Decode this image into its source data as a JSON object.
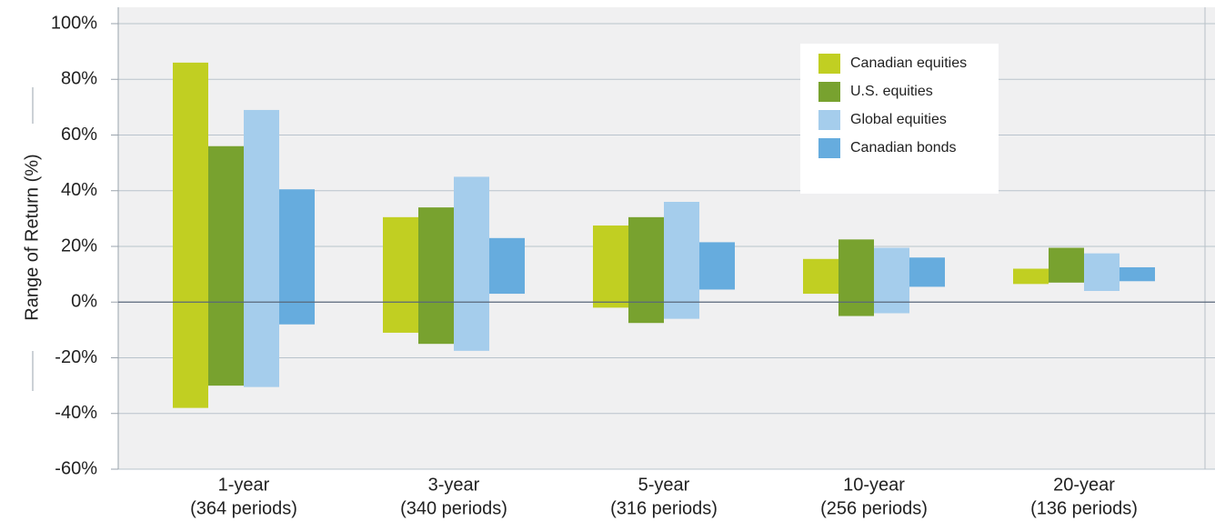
{
  "chart_data": {
    "type": "bar",
    "subtype": "floating-range",
    "ylabel": "Range of Return (%)",
    "ylim": [
      -60,
      100
    ],
    "yticks": [
      "100%",
      "80%",
      "60%",
      "40%",
      "20%",
      "0%",
      "-20%",
      "-40%",
      "-60%"
    ],
    "ytick_values": [
      100,
      80,
      60,
      40,
      20,
      0,
      -20,
      -40,
      -60
    ],
    "grid": true,
    "legend_position": "top-right",
    "categories": [
      {
        "line1": "1-year",
        "line2": "(364 periods)"
      },
      {
        "line1": "3-year",
        "line2": "(340 periods)"
      },
      {
        "line1": "5-year",
        "line2": "(316 periods)"
      },
      {
        "line1": "10-year",
        "line2": "(256 periods)"
      },
      {
        "line1": "20-year",
        "line2": "(136 periods)"
      }
    ],
    "series": [
      {
        "name": "Canadian equities",
        "color": "#c1cf22",
        "low": [
          -38,
          -11,
          -2,
          3,
          6.5
        ],
        "high": [
          86,
          30.5,
          27.5,
          15.5,
          12
        ]
      },
      {
        "name": "U.S. equities",
        "color": "#78a22f",
        "low": [
          -30,
          -15,
          -7.5,
          -5,
          7
        ],
        "high": [
          56,
          34,
          30.5,
          22.5,
          19.5
        ]
      },
      {
        "name": "Global equities",
        "color": "#a5cdec",
        "low": [
          -30.5,
          -17.5,
          -6,
          -4,
          4
        ],
        "high": [
          69,
          45,
          36,
          19.5,
          17.5
        ]
      },
      {
        "name": "Canadian bonds",
        "color": "#66acde",
        "low": [
          -8,
          3,
          4.5,
          5.5,
          7.5
        ],
        "high": [
          40.5,
          23,
          21.5,
          16,
          12.5
        ]
      }
    ]
  }
}
